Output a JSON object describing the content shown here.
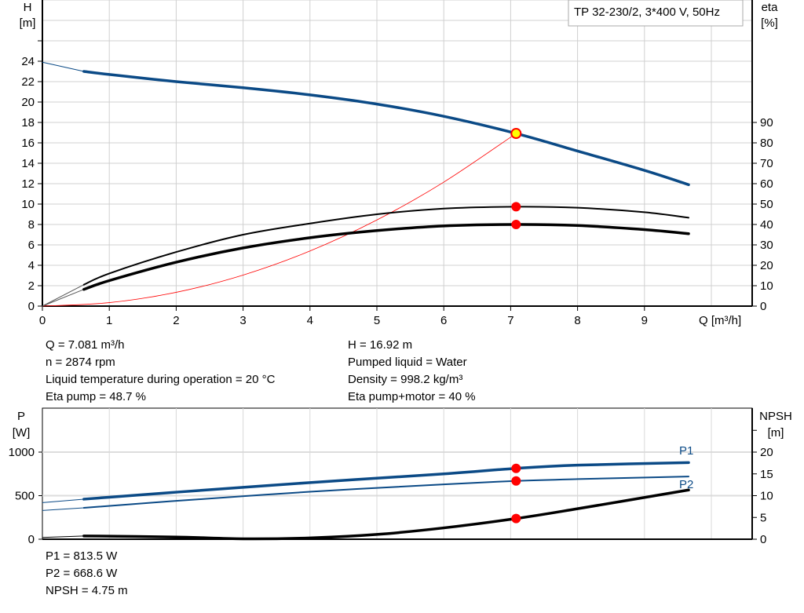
{
  "chart_data": [
    {
      "type": "line",
      "title": "TP 32-230/2, 3*400 V, 50Hz",
      "xlabel": "Q [m³/h]",
      "xlim": [
        0,
        10.5
      ],
      "xticks": [
        0,
        1,
        2,
        3,
        4,
        5,
        6,
        7,
        8,
        9
      ],
      "ylabel_left": "H",
      "ylabel_left_unit": "[m]",
      "ylim_left": [
        0,
        30
      ],
      "yticks_left": [
        0,
        2,
        4,
        6,
        8,
        10,
        12,
        14,
        16,
        18,
        20,
        22,
        24
      ],
      "ylabel_right": "eta",
      "ylabel_right_unit": "[%]",
      "ylim_right": [
        0,
        150
      ],
      "yticks_right": [
        0,
        10,
        20,
        30,
        40,
        50,
        60,
        70,
        80,
        90
      ],
      "grid": true,
      "series": [
        {
          "key": "H",
          "axis": "left",
          "color": "#0b4a86",
          "x": [
            0,
            0.62,
            1,
            2,
            3,
            4,
            5,
            6,
            7.081,
            8,
            9,
            9.66
          ],
          "values": [
            23.9,
            23.0,
            22.7,
            22.0,
            21.4,
            20.7,
            19.8,
            18.6,
            16.92,
            15.2,
            13.3,
            11.9
          ]
        },
        {
          "key": "eta_pump",
          "axis": "right",
          "color": "#000000",
          "x": [
            0,
            0.62,
            1,
            2,
            3,
            4,
            5,
            6,
            7.081,
            8,
            9,
            9.66
          ],
          "values": [
            0,
            10.5,
            16,
            26.5,
            35,
            40.5,
            45,
            47.8,
            48.7,
            48.2,
            46,
            43.3
          ]
        },
        {
          "key": "eta_pump_motor",
          "axis": "right",
          "color": "#000000",
          "x": [
            0,
            0.62,
            1,
            2,
            3,
            4,
            5,
            6,
            7.081,
            8,
            9,
            9.66
          ],
          "values": [
            0,
            8.2,
            12.5,
            21.5,
            28.5,
            33.5,
            37,
            39.3,
            40,
            39.5,
            37.5,
            35.5
          ]
        },
        {
          "key": "system",
          "axis": "left",
          "color": "#ff0000",
          "x": [
            0,
            1,
            2,
            3,
            4,
            5,
            6,
            7.081
          ],
          "values": [
            0,
            0.34,
            1.35,
            3.04,
            5.4,
            8.44,
            12.15,
            16.92
          ]
        }
      ],
      "duty_point": {
        "Q": 7.081,
        "H": 16.92,
        "eta_pump": 48.7,
        "eta_pump_motor": 40
      }
    },
    {
      "type": "line",
      "xlim": [
        0,
        10.5
      ],
      "ylabel_left": "P",
      "ylabel_left_unit": "[W]",
      "ylim_left": [
        0,
        1300
      ],
      "yticks_left": [
        0,
        500,
        1000
      ],
      "ylabel_right": "NPSH",
      "ylabel_right_unit": "[m]",
      "ylim_right": [
        0,
        26
      ],
      "yticks_right": [
        0,
        5,
        10,
        15,
        20
      ],
      "grid": true,
      "series": [
        {
          "name": "P1",
          "axis": "left",
          "color": "#0b4a86",
          "x": [
            0,
            0.62,
            2,
            4,
            6,
            7.081,
            8,
            9.66
          ],
          "values": [
            420,
            460,
            540,
            650,
            750,
            813.5,
            850,
            880
          ]
        },
        {
          "name": "P2",
          "axis": "left",
          "color": "#0b4a86",
          "x": [
            0,
            0.62,
            2,
            4,
            6,
            7.081,
            8,
            9.66
          ],
          "values": [
            330,
            360,
            440,
            545,
            630,
            668.6,
            690,
            720
          ]
        },
        {
          "key": "NPSH",
          "axis": "right",
          "color": "#000000",
          "x": [
            0,
            0.62,
            2,
            3,
            4,
            5,
            6,
            7.081,
            8,
            9.66
          ],
          "values": [
            0.4,
            0.75,
            0.5,
            0.1,
            0.3,
            1.1,
            2.6,
            4.75,
            7,
            11.3
          ]
        }
      ]
    }
  ],
  "info_top_left": [
    "Q = 7.081 m³/h",
    "n = 2874 rpm",
    "Liquid temperature during operation = 20 °C",
    "Eta pump = 48.7 %"
  ],
  "info_top_right": [
    "H = 16.92 m",
    "Pumped liquid = Water",
    "Density = 998.2 kg/m³",
    "Eta pump+motor = 40 %"
  ],
  "info_bottom": [
    "P1 = 813.5 W",
    "P2 = 668.6 W",
    "NPSH = 4.75 m"
  ]
}
